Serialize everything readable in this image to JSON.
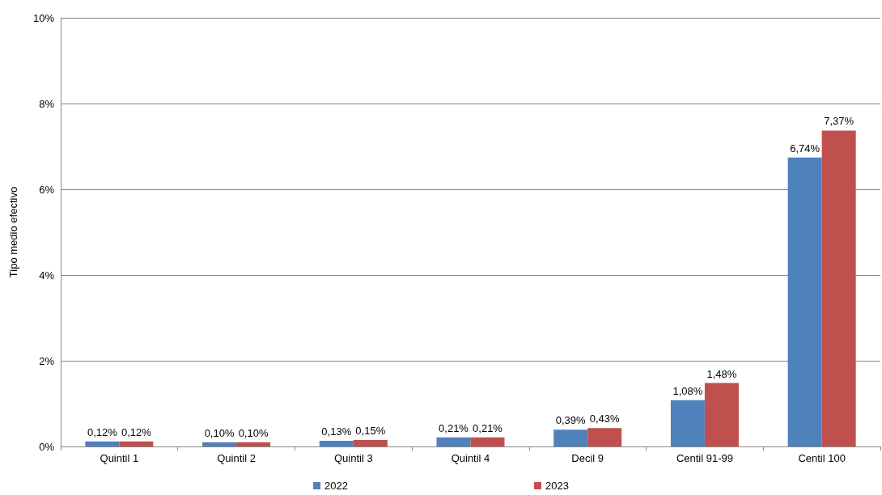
{
  "chart_data": {
    "type": "bar",
    "ylabel": "Tipo medio efectivo",
    "categories": [
      "Quintil 1",
      "Quintil 2",
      "Quintil 3",
      "Quintil 4",
      "Decil 9",
      "Centil 91-99",
      "Centil 100"
    ],
    "series": [
      {
        "name": "2022",
        "color": "#4f81bd",
        "values": [
          0.12,
          0.1,
          0.13,
          0.21,
          0.39,
          1.08,
          6.74
        ],
        "value_labels": [
          "0,12%",
          "0,10%",
          "0,13%",
          "0,21%",
          "0,39%",
          "1,08%",
          "6,74%"
        ]
      },
      {
        "name": "2023",
        "color": "#c0504d",
        "values": [
          0.12,
          0.1,
          0.15,
          0.21,
          0.43,
          1.48,
          7.37
        ],
        "value_labels": [
          "0,12%",
          "0,10%",
          "0,15%",
          "0,21%",
          "0,43%",
          "1,48%",
          "7,37%"
        ]
      }
    ],
    "ylim": [
      0,
      10
    ],
    "yticks": [
      {
        "value": 0,
        "label": "0%"
      },
      {
        "value": 2,
        "label": "2%"
      },
      {
        "value": 4,
        "label": "4%"
      },
      {
        "value": 6,
        "label": "6%"
      },
      {
        "value": 8,
        "label": "8%"
      },
      {
        "value": 10,
        "label": "10%"
      }
    ],
    "grid": "y",
    "legend": "bottom"
  }
}
